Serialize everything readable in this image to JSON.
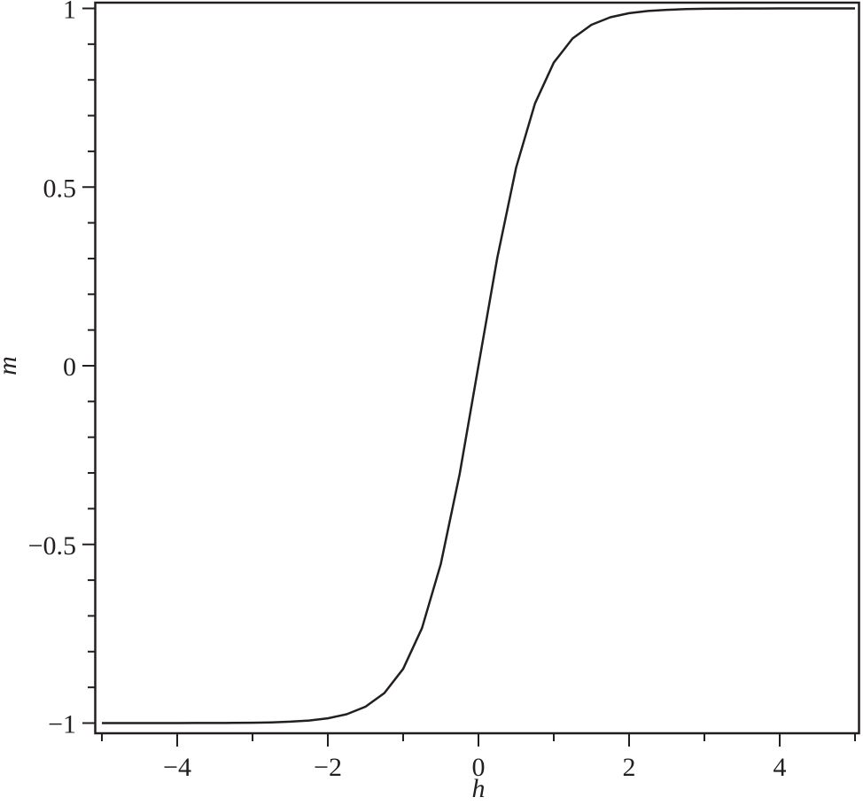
{
  "chart_data": {
    "type": "line",
    "title": "",
    "xlabel": "h",
    "ylabel": "m",
    "xlim": [
      -5,
      5
    ],
    "ylim": [
      -1.02,
      1.02
    ],
    "grid": false,
    "line_color": "#231f20",
    "x_ticks": [
      -4,
      -2,
      0,
      2,
      4
    ],
    "x_tick_labels": [
      "-4",
      "-2",
      "0",
      "2",
      "4"
    ],
    "x_minor_step": 1,
    "y_ticks": [
      -1,
      -0.5,
      0,
      0.5,
      1
    ],
    "y_tick_labels": [
      "-1",
      "-0.5",
      "0",
      "0.5",
      "1"
    ],
    "y_minor_step": 0.1,
    "series": [
      {
        "x": [
          0,
          0.25,
          0.5,
          0.75,
          1.0,
          1.25,
          1.5,
          1.75,
          2.0,
          2.25,
          2.5,
          2.75,
          3.0,
          3.25,
          3.5,
          3.75,
          4.0,
          4.25,
          4.5,
          4.75,
          5.0
        ],
        "y": [
          0,
          0.3027,
          0.5546,
          0.7342,
          0.8483,
          0.916,
          0.9541,
          0.9752,
          0.9866,
          0.9928,
          0.9961,
          0.9979,
          0.9989,
          0.9994,
          0.9997,
          0.9998,
          0.9999,
          1.0,
          1.0,
          1.0,
          1.0
        ],
        "symmetry": "odd"
      }
    ]
  }
}
